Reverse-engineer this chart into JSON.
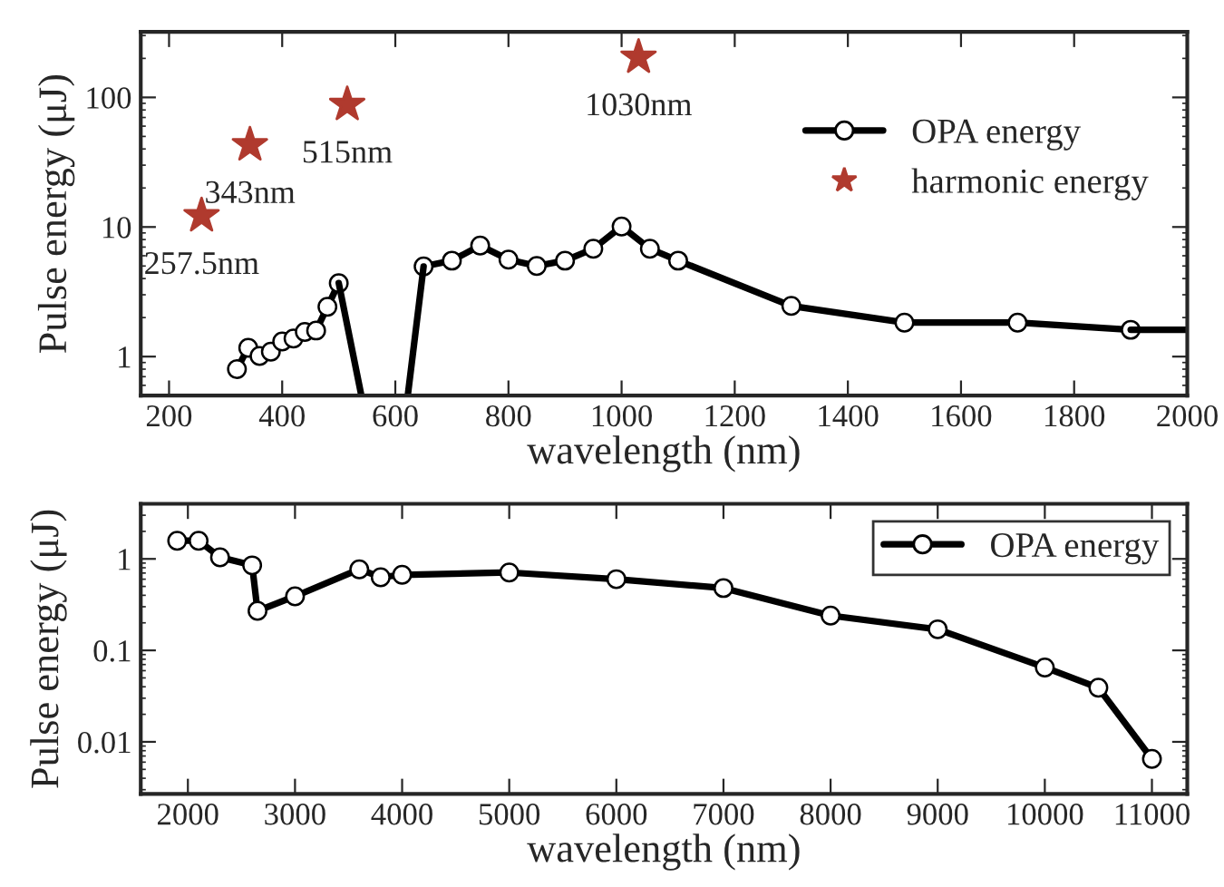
{
  "chart_data": [
    {
      "type": "line",
      "xlabel": "wavelength (nm)",
      "ylabel": "Pulse energy (μJ)",
      "log": "y",
      "xlim": [
        150,
        2000
      ],
      "xticks": [
        200,
        400,
        600,
        800,
        1000,
        1200,
        1400,
        1600,
        1800,
        2000
      ],
      "ylim": [
        0.5,
        320
      ],
      "yticks": [
        1,
        10,
        100
      ],
      "legend": "right",
      "grid": false,
      "series": [
        {
          "name": "OPA energy",
          "color": "#000000",
          "marker": "circle",
          "x": [
            320,
            340,
            360,
            380,
            400,
            420,
            440,
            460,
            480,
            500,
            575,
            650,
            700,
            750,
            800,
            850,
            900,
            950,
            1000,
            1050,
            1100,
            1300,
            1500,
            1700,
            1900
          ],
          "values": [
            0.8,
            1.17,
            1.01,
            1.09,
            1.31,
            1.38,
            1.55,
            1.59,
            2.42,
            3.69,
            null,
            4.96,
            5.5,
            7.2,
            5.6,
            5.0,
            5.5,
            6.8,
            10.1,
            6.8,
            5.5,
            2.46,
            1.83,
            1.83,
            1.61
          ]
        },
        {
          "color": "#000000",
          "marker": "none",
          "x": [
            500,
            540
          ],
          "values": [
            3.69,
            0.5
          ]
        },
        {
          "color": "#000000",
          "marker": "none",
          "x": [
            622,
            650
          ],
          "values": [
            0.5,
            4.96
          ]
        },
        {
          "color": "#000000",
          "marker": "none",
          "x": [
            1900,
            2000
          ],
          "values": [
            1.61,
            1.61
          ]
        },
        {
          "name": "harmonic energy",
          "type": "scatter",
          "color": "#b03a2e",
          "marker": "star",
          "x": [
            257.5,
            343,
            515,
            1030
          ],
          "values": [
            12.2,
            43,
            88,
            204
          ]
        }
      ],
      "annotations": [
        {
          "text": "257.5nm",
          "x": 257.5,
          "y": 12.2
        },
        {
          "text": "343nm",
          "x": 343,
          "y": 43
        },
        {
          "text": "515nm",
          "x": 515,
          "y": 88
        },
        {
          "text": "1030nm",
          "x": 1030,
          "y": 204
        }
      ]
    },
    {
      "type": "line",
      "xlabel": "wavelength (nm)",
      "ylabel": "Pulse energy (μJ)",
      "log": "y",
      "xlim": [
        1560,
        11330
      ],
      "xticks": [
        2000,
        3000,
        4000,
        5000,
        6000,
        7000,
        8000,
        9000,
        10000,
        11000
      ],
      "ylim": [
        0.0027,
        4
      ],
      "yticks": [
        0.01,
        0.1,
        1
      ],
      "legend": "top right",
      "grid": false,
      "series": [
        {
          "name": "OPA energy",
          "color": "#000000",
          "marker": "circle",
          "x": [
            1900,
            2100,
            2300,
            2600,
            2650,
            3000,
            3600,
            3800,
            4000,
            5000,
            6000,
            7000,
            8000,
            9000,
            10000,
            10500,
            11000
          ],
          "values": [
            1.58,
            1.58,
            1.04,
            0.85,
            0.27,
            0.39,
            0.77,
            0.63,
            0.67,
            0.71,
            0.6,
            0.48,
            0.24,
            0.17,
            0.065,
            0.039,
            0.0065
          ]
        }
      ]
    }
  ]
}
